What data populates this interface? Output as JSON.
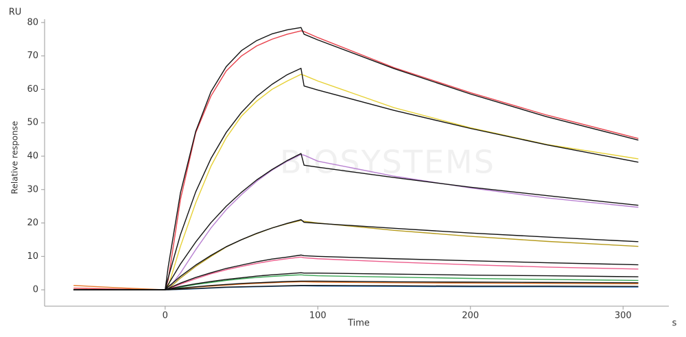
{
  "chart_data": {
    "type": "line",
    "y_unit": "RU",
    "ylabel": "Relative response",
    "xlabel": "Time",
    "x_unit": "s",
    "watermark": "BIOSYSTEMS",
    "xlim": [
      -79,
      330
    ],
    "ylim": [
      -4.9,
      81
    ],
    "xticks": [
      0,
      100,
      200,
      300
    ],
    "yticks": [
      0,
      10,
      20,
      30,
      40,
      50,
      60,
      70,
      80
    ],
    "grid": false,
    "x": [
      -60,
      -30,
      0,
      2,
      10,
      20,
      30,
      40,
      50,
      60,
      70,
      80,
      89,
      91,
      100,
      150,
      200,
      250,
      310
    ],
    "series": [
      {
        "color": "#e8414b",
        "values": [
          0.5,
          0.2,
          0,
          3,
          27,
          47,
          58,
          65.5,
          70,
          73,
          75,
          76.5,
          77.5,
          77.3,
          75.5,
          66.5,
          59,
          52.3,
          45.3
        ]
      },
      {
        "color": "#e6d033",
        "values": [
          0,
          0,
          0,
          1,
          13,
          26,
          37,
          45.5,
          52,
          56.5,
          60,
          62.5,
          64.5,
          64.2,
          62.5,
          54.5,
          48.5,
          43.5,
          39.2
        ]
      },
      {
        "color": "#b77fd0",
        "values": [
          0,
          0,
          0,
          0.3,
          5,
          12,
          18.5,
          24,
          28.5,
          32.5,
          35.8,
          38.5,
          40.5,
          40.3,
          38.5,
          34,
          30.5,
          27.5,
          24.7
        ]
      },
      {
        "color": "#b59a1c",
        "values": [
          0,
          0,
          0,
          0.3,
          3.5,
          7,
          10,
          12.8,
          15,
          16.8,
          18.5,
          19.8,
          20.8,
          20.5,
          20,
          17.8,
          16,
          14.5,
          13.0
        ]
      },
      {
        "color": "#ec5d8c",
        "values": [
          0,
          0,
          0,
          0.2,
          1.7,
          3.3,
          4.8,
          6,
          7,
          7.9,
          8.7,
          9.3,
          9.8,
          9.6,
          9.3,
          8.3,
          7.5,
          6.8,
          6.2
        ]
      },
      {
        "color": "#3aa655",
        "values": [
          0,
          0,
          0,
          0.1,
          0.8,
          1.6,
          2.2,
          2.8,
          3.3,
          3.7,
          4.0,
          4.3,
          4.5,
          4.4,
          4.2,
          3.8,
          3.4,
          3.1,
          2.8
        ]
      },
      {
        "color": "#e8782a",
        "values": [
          1.3,
          0.6,
          0,
          0.1,
          0.4,
          0.8,
          1.1,
          1.4,
          1.7,
          1.9,
          2.1,
          2.3,
          2.4,
          2.4,
          2.3,
          2.1,
          2.0,
          1.9,
          1.8
        ]
      },
      {
        "color": "#3b7fc4",
        "values": [
          0,
          0,
          0,
          0,
          0.1,
          0.3,
          0.5,
          0.7,
          0.8,
          0.9,
          1.0,
          1.1,
          1.2,
          1.2,
          1.1,
          1.0,
          0.9,
          0.9,
          0.8
        ]
      },
      {
        "color": "#111111",
        "values": [
          0,
          0,
          0,
          6.9,
          29.0,
          47.4,
          59.3,
          66.8,
          71.6,
          74.6,
          76.6,
          77.8,
          78.5,
          76.5,
          74.8,
          66.2,
          58.6,
          51.8,
          44.8
        ]
      },
      {
        "color": "#111111",
        "values": [
          0,
          0,
          0,
          3.6,
          16.5,
          29.3,
          39.3,
          47.1,
          53.1,
          57.9,
          61.5,
          64.4,
          66.3,
          61.0,
          59.8,
          53.7,
          48.3,
          43.4,
          38.2
        ]
      },
      {
        "color": "#111111",
        "values": [
          0,
          0,
          0,
          1.6,
          7.7,
          14.3,
          20.1,
          25.0,
          29.2,
          32.9,
          36.0,
          38.7,
          40.8,
          37.3,
          36.7,
          33.6,
          30.7,
          28.2,
          25.3
        ]
      },
      {
        "color": "#111111",
        "values": [
          0,
          0,
          0,
          0.9,
          4.0,
          7.4,
          10.3,
          12.9,
          15.0,
          16.9,
          18.5,
          19.9,
          21.0,
          20.2,
          19.9,
          18.4,
          17.0,
          15.8,
          14.4
        ]
      },
      {
        "color": "#111111",
        "values": [
          0,
          0,
          0,
          0.4,
          2.0,
          3.7,
          5.1,
          6.4,
          7.4,
          8.4,
          9.2,
          9.8,
          10.4,
          10.2,
          10.0,
          9.3,
          8.7,
          8.1,
          7.5
        ]
      },
      {
        "color": "#111111",
        "values": [
          0,
          0,
          0,
          0.2,
          1.0,
          1.8,
          2.5,
          3.1,
          3.6,
          4.1,
          4.5,
          4.8,
          5.1,
          5.0,
          5.0,
          4.7,
          4.4,
          4.2,
          3.9
        ]
      },
      {
        "color": "#111111",
        "values": [
          0,
          0,
          0,
          0.1,
          0.5,
          0.9,
          1.3,
          1.6,
          1.9,
          2.1,
          2.3,
          2.5,
          2.6,
          2.6,
          2.6,
          2.4,
          2.3,
          2.2,
          2.1
        ]
      },
      {
        "color": "#111111",
        "values": [
          0,
          0,
          0,
          0,
          0.2,
          0.4,
          0.6,
          0.8,
          0.9,
          1.0,
          1.1,
          1.2,
          1.3,
          1.3,
          1.3,
          1.2,
          1.1,
          1.1,
          1.0
        ]
      }
    ]
  }
}
